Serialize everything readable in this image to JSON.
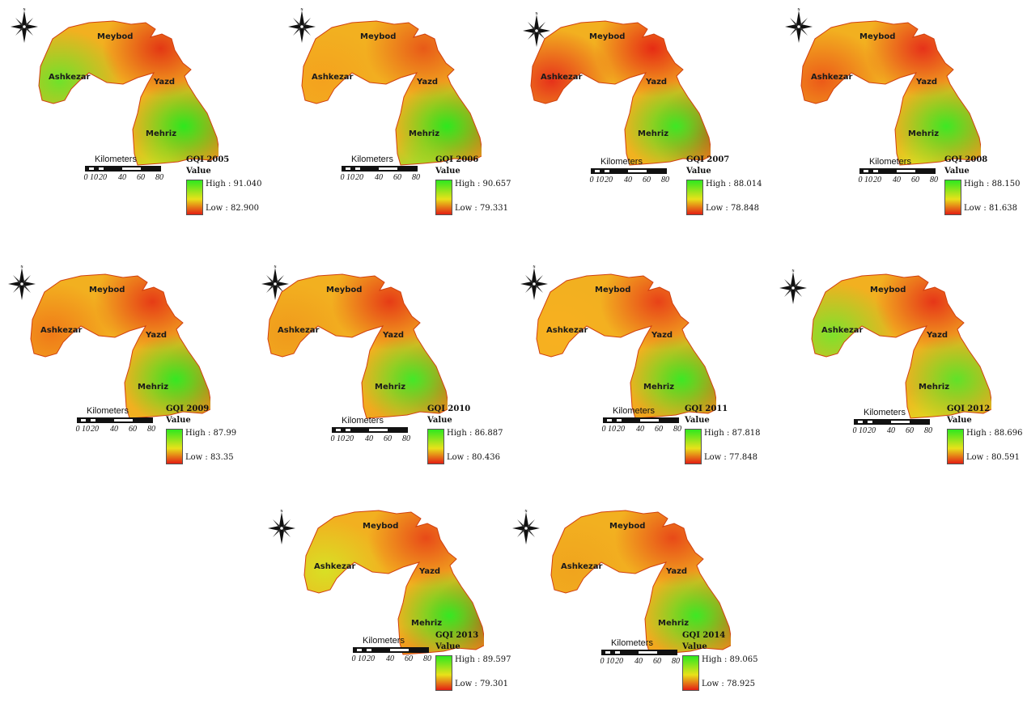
{
  "maps": [
    {
      "title": "GQI 2005",
      "value_label": "Value",
      "high": "High : 91.040",
      "low": "Low : 82.900",
      "scale_title": "Kilometers",
      "ticks": [
        "0",
        "10",
        "20",
        "40",
        "60",
        "80"
      ],
      "cities": [
        "Meybod",
        "Ashkezar",
        "Yazd",
        "Mehriz"
      ]
    },
    {
      "title": "GQI 2006",
      "value_label": "Value",
      "high": "High : 90.657",
      "low": "Low : 79.331",
      "scale_title": "Kilometers",
      "ticks": [
        "0",
        "10",
        "20",
        "40",
        "60",
        "80"
      ],
      "cities": [
        "Meybod",
        "Ashkezar",
        "Yazd",
        "Mehriz"
      ]
    },
    {
      "title": "GQI 2007",
      "value_label": "Value",
      "high": "High : 88.014",
      "low": "Low : 78.848",
      "scale_title": "Kilometers",
      "ticks": [
        "0",
        "10",
        "20",
        "40",
        "60",
        "80"
      ],
      "cities": [
        "Meybod",
        "Ashkezar",
        "Yazd",
        "Mehriz"
      ]
    },
    {
      "title": "GQI 2008",
      "value_label": "Value",
      "high": "High : 88.150",
      "low": "Low : 81.638",
      "scale_title": "Kilometers",
      "ticks": [
        "0",
        "10",
        "20",
        "40",
        "60",
        "80"
      ],
      "cities": [
        "Meybod",
        "Ashkezar",
        "Yazd",
        "Mehriz"
      ]
    },
    {
      "title": "GQI 2009",
      "value_label": "Value",
      "high": "High : 87.99",
      "low": "Low : 83.35",
      "scale_title": "Kilometers",
      "ticks": [
        "0",
        "10",
        "20",
        "40",
        "60",
        "80"
      ],
      "cities": [
        "Meybod",
        "Ashkezar",
        "Yazd",
        "Mehriz"
      ]
    },
    {
      "title": "GQI 2010",
      "value_label": "Value",
      "high": "High : 86.887",
      "low": "Low : 80.436",
      "scale_title": "Kilometers",
      "ticks": [
        "0",
        "10",
        "20",
        "40",
        "60",
        "80"
      ],
      "cities": [
        "Meybod",
        "Ashkezar",
        "Yazd",
        "Mehriz"
      ]
    },
    {
      "title": "GQI 2011",
      "value_label": "Value",
      "high": "High : 87.818",
      "low": "Low : 77.848",
      "scale_title": "Kilometers",
      "ticks": [
        "0",
        "10",
        "20",
        "40",
        "60",
        "80"
      ],
      "cities": [
        "Meybod",
        "Ashkezar",
        "Yazd",
        "Mehriz"
      ]
    },
    {
      "title": "GQI 2012",
      "value_label": "Value",
      "high": "High : 88.696",
      "low": "Low : 80.591",
      "scale_title": "Kilometers",
      "ticks": [
        "0",
        "10",
        "20",
        "40",
        "60",
        "80"
      ],
      "cities": [
        "Meybod",
        "Ashkezar",
        "Yazd",
        "Mehriz"
      ]
    },
    {
      "title": "GQI 2013",
      "value_label": "Value",
      "high": "High : 89.597",
      "low": "Low : 79.301",
      "scale_title": "Kilometers",
      "ticks": [
        "0",
        "10",
        "20",
        "40",
        "60",
        "80"
      ],
      "cities": [
        "Meybod",
        "Ashkezar",
        "Yazd",
        "Mehriz"
      ]
    },
    {
      "title": "GQI 2014",
      "value_label": "Value",
      "high": "High : 89.065",
      "low": "Low : 78.925",
      "scale_title": "Kilometers",
      "ticks": [
        "0",
        "10",
        "20",
        "40",
        "60",
        "80"
      ],
      "cities": [
        "Meybod",
        "Ashkezar",
        "Yazd",
        "Mehriz"
      ]
    }
  ],
  "colors": {
    "high": "#2ee81e",
    "mid": "#e8e21a",
    "low": "#e31e14"
  },
  "icons": {
    "north_arrow": "compass-rose-icon"
  }
}
